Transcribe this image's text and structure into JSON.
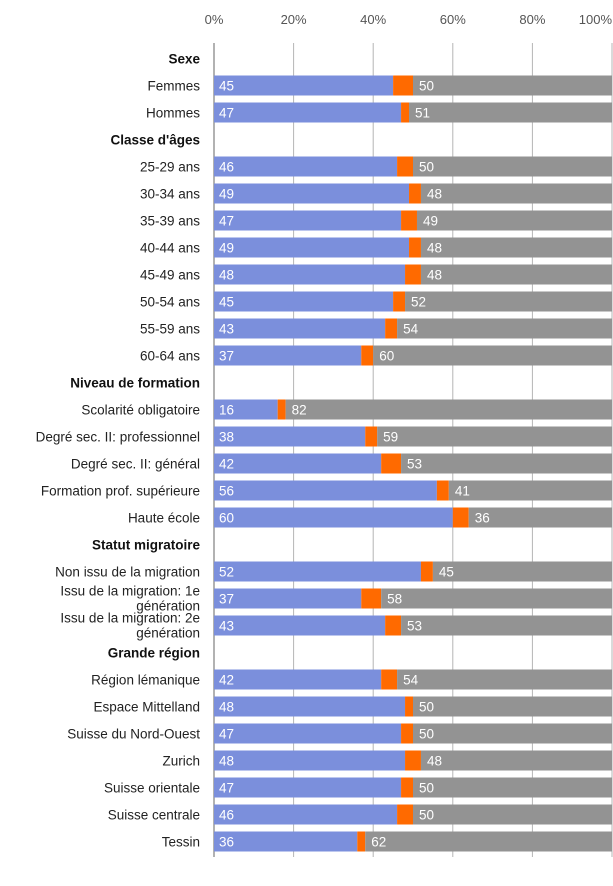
{
  "chart_data": {
    "type": "bar",
    "stacked": true,
    "orientation": "horizontal",
    "xlim": [
      0,
      100
    ],
    "xticks": [
      "0%",
      "20%",
      "40%",
      "60%",
      "80%",
      "100%"
    ],
    "grid": true,
    "colors": [
      "#7b8fdc",
      "#ff6a00",
      "#939393"
    ],
    "rows": [
      {
        "kind": "header",
        "label": "Sexe"
      },
      {
        "kind": "bar",
        "label": "Femmes",
        "values": [
          45,
          5,
          50
        ]
      },
      {
        "kind": "bar",
        "label": "Hommes",
        "values": [
          47,
          2,
          51
        ]
      },
      {
        "kind": "header",
        "label": "Classe d'âges"
      },
      {
        "kind": "bar",
        "label": "25-29 ans",
        "values": [
          46,
          4,
          50
        ]
      },
      {
        "kind": "bar",
        "label": "30-34 ans",
        "values": [
          49,
          3,
          48
        ]
      },
      {
        "kind": "bar",
        "label": "35-39 ans",
        "values": [
          47,
          4,
          49
        ]
      },
      {
        "kind": "bar",
        "label": "40-44 ans",
        "values": [
          49,
          3,
          48
        ]
      },
      {
        "kind": "bar",
        "label": "45-49 ans",
        "values": [
          48,
          4,
          48
        ]
      },
      {
        "kind": "bar",
        "label": "50-54 ans",
        "values": [
          45,
          3,
          52
        ]
      },
      {
        "kind": "bar",
        "label": "55-59 ans",
        "values": [
          43,
          3,
          54
        ]
      },
      {
        "kind": "bar",
        "label": "60-64 ans",
        "values": [
          37,
          3,
          60
        ]
      },
      {
        "kind": "header",
        "label": "Niveau de formation"
      },
      {
        "kind": "bar",
        "label": "Scolarité obligatoire",
        "values": [
          16,
          2,
          82
        ]
      },
      {
        "kind": "bar",
        "label": "Degré sec. II: professionnel",
        "values": [
          38,
          3,
          59
        ]
      },
      {
        "kind": "bar",
        "label": "Degré sec. II: général",
        "values": [
          42,
          5,
          53
        ]
      },
      {
        "kind": "bar",
        "label": "Formation prof. supérieure",
        "values": [
          56,
          3,
          41
        ]
      },
      {
        "kind": "bar",
        "label": "Haute école",
        "values": [
          60,
          4,
          36
        ]
      },
      {
        "kind": "header",
        "label": "Statut migratoire"
      },
      {
        "kind": "bar",
        "label": "Non issu de la migration",
        "values": [
          52,
          3,
          45
        ]
      },
      {
        "kind": "bar",
        "label": "Issu de la migration: 1e génération",
        "lines": [
          "Issu de la migration: 1e",
          "génération"
        ],
        "values": [
          37,
          5,
          58
        ]
      },
      {
        "kind": "bar",
        "label": "Issu de la migration: 2e génération",
        "lines": [
          "Issu de la migration: 2e",
          "génération"
        ],
        "values": [
          43,
          4,
          53
        ]
      },
      {
        "kind": "header",
        "label": "Grande région"
      },
      {
        "kind": "bar",
        "label": "Région lémanique",
        "values": [
          42,
          4,
          54
        ]
      },
      {
        "kind": "bar",
        "label": "Espace Mittelland",
        "values": [
          48,
          2,
          50
        ]
      },
      {
        "kind": "bar",
        "label": "Suisse du Nord-Ouest",
        "values": [
          47,
          3,
          50
        ]
      },
      {
        "kind": "bar",
        "label": "Zurich",
        "values": [
          48,
          4,
          48
        ]
      },
      {
        "kind": "bar",
        "label": "Suisse orientale",
        "values": [
          47,
          3,
          50
        ]
      },
      {
        "kind": "bar",
        "label": "Suisse centrale",
        "values": [
          46,
          4,
          50
        ]
      },
      {
        "kind": "bar",
        "label": "Tessin",
        "values": [
          36,
          2,
          62
        ]
      }
    ]
  }
}
